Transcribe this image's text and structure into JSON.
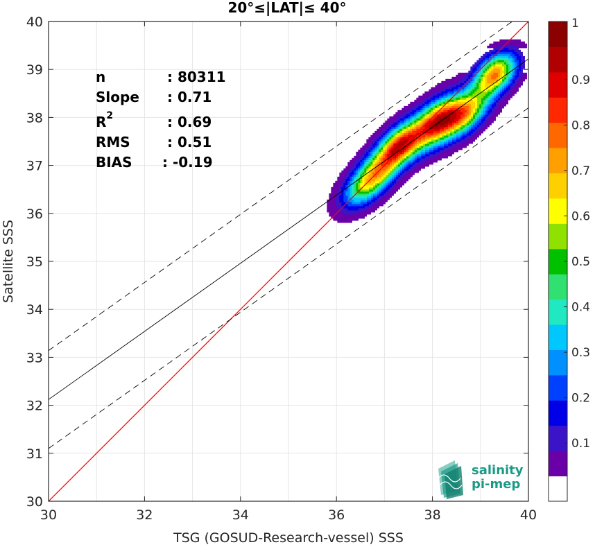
{
  "chart_data": {
    "type": "heatmap",
    "title": "20°≤|LAT|≤ 40°",
    "xlabel": "TSG (GOSUD-Research-vessel) SSS",
    "ylabel": "Satellite SSS",
    "xlim": [
      30,
      40
    ],
    "ylim": [
      30,
      40
    ],
    "xticks": [
      "30",
      "32",
      "34",
      "36",
      "38",
      "40"
    ],
    "yticks": [
      "30",
      "31",
      "32",
      "33",
      "34",
      "35",
      "36",
      "37",
      "38",
      "39",
      "40"
    ],
    "grid": true,
    "colorbar": {
      "range": [
        0,
        1
      ],
      "tick_labels": [
        "0.1",
        "0.2",
        "0.3",
        "0.4",
        "0.5",
        "0.6",
        "0.7",
        "0.8",
        "0.9",
        "1"
      ],
      "colors": [
        "#ffffff",
        "#6a00a8",
        "#3b14c8",
        "#0000e8",
        "#0040ff",
        "#0090ff",
        "#00c8ff",
        "#20e8c0",
        "#30e070",
        "#00c000",
        "#90e000",
        "#ffff00",
        "#ffd000",
        "#ffa000",
        "#ff6800",
        "#ff2800",
        "#e00000",
        "#b00000",
        "#8b0000"
      ]
    },
    "stats": {
      "n": "80311",
      "slope": "0.71",
      "r2": "0.69",
      "rms": "0.51",
      "bias": "-0.19"
    },
    "reference_lines": [
      {
        "kind": "identity",
        "color": "#ff0000",
        "x": [
          30,
          40
        ],
        "y": [
          30,
          40
        ]
      },
      {
        "kind": "regression",
        "color": "#000000",
        "x": [
          30,
          40
        ],
        "y": [
          32.12,
          39.22
        ]
      },
      {
        "kind": "regression_plus_2rms",
        "color": "#000000",
        "dashed": true,
        "x": [
          30,
          40
        ],
        "y": [
          33.14,
          40.24
        ]
      },
      {
        "kind": "regression_minus_2rms",
        "color": "#000000",
        "dashed": true,
        "x": [
          30,
          40
        ],
        "y": [
          31.1,
          38.2
        ]
      }
    ],
    "density_peaks": [
      {
        "x": 36.7,
        "y": 36.7,
        "level": 0.55
      },
      {
        "x": 37.3,
        "y": 37.4,
        "level": 0.95
      },
      {
        "x": 38.1,
        "y": 37.9,
        "level": 1.0
      },
      {
        "x": 38.7,
        "y": 38.1,
        "level": 0.55
      },
      {
        "x": 39.3,
        "y": 38.9,
        "level": 0.75
      }
    ]
  },
  "labels": {
    "stat_n": "n",
    "stat_slope": "Slope",
    "stat_r": "R",
    "stat_r_sup": "2",
    "stat_rms": "RMS",
    "stat_bias": "BIAS"
  },
  "logo": {
    "line1": "salinity",
    "line2": "pi-mep",
    "color": "#1a9a86"
  }
}
